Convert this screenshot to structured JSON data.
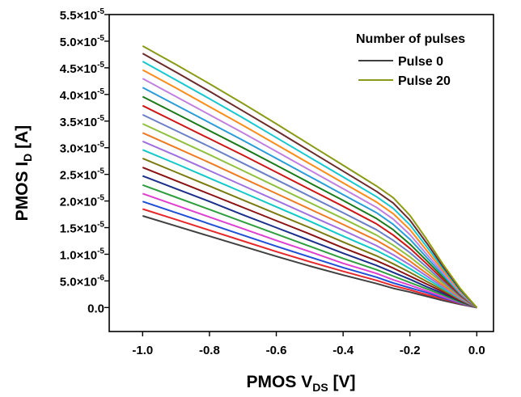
{
  "chart_data": {
    "type": "line",
    "xlabel": {
      "main": "PMOS V",
      "sub": "DS",
      "unit": " [V]"
    },
    "ylabel": {
      "main": "PMOS I",
      "sub": "D",
      "unit": " [A]"
    },
    "xlim": [
      -1.1,
      0.05
    ],
    "ylim": [
      -4.5e-06,
      5.5e-05
    ],
    "x_ticks": [
      {
        "value": -1.0,
        "label": "-1.0"
      },
      {
        "value": -0.8,
        "label": "-0.8"
      },
      {
        "value": -0.6,
        "label": "-0.6"
      },
      {
        "value": -0.4,
        "label": "-0.4"
      },
      {
        "value": -0.2,
        "label": "-0.2"
      },
      {
        "value": 0.0,
        "label": "0.0"
      }
    ],
    "y_ticks": [
      {
        "value": 0.0,
        "label": "0.0",
        "mant": "",
        "exp": ""
      },
      {
        "value": 5e-06,
        "label": "",
        "mant": "5.0×10",
        "exp": "-6"
      },
      {
        "value": 1e-05,
        "label": "",
        "mant": "1.0×10",
        "exp": "-5"
      },
      {
        "value": 1.5e-05,
        "label": "",
        "mant": "1.5×10",
        "exp": "-5"
      },
      {
        "value": 2e-05,
        "label": "",
        "mant": "2.0×10",
        "exp": "-5"
      },
      {
        "value": 2.5e-05,
        "label": "",
        "mant": "2.5×10",
        "exp": "-5"
      },
      {
        "value": 3e-05,
        "label": "",
        "mant": "3.0×10",
        "exp": "-5"
      },
      {
        "value": 3.5e-05,
        "label": "",
        "mant": "3.5×10",
        "exp": "-5"
      },
      {
        "value": 4e-05,
        "label": "",
        "mant": "4.0×10",
        "exp": "-5"
      },
      {
        "value": 4.5e-05,
        "label": "",
        "mant": "4.5×10",
        "exp": "-5"
      },
      {
        "value": 5e-05,
        "label": "",
        "mant": "5.0×10",
        "exp": "-5"
      },
      {
        "value": 5.5e-05,
        "label": "",
        "mant": "5.5×10",
        "exp": "-5"
      }
    ],
    "x": [
      -1.0,
      -0.9,
      -0.8,
      -0.7,
      -0.6,
      -0.5,
      -0.4,
      -0.3,
      -0.25,
      -0.2,
      -0.15,
      -0.1,
      -0.05,
      0.0
    ],
    "series": [
      {
        "color": "#404040",
        "values": [
          1.72e-05,
          1.53e-05,
          1.34e-05,
          1.15e-05,
          9.6e-06,
          7.8e-06,
          6.1e-06,
          4.5e-06,
          3.6e-06,
          2.9e-06,
          2.1e-06,
          1.3e-06,
          6e-07,
          0.0
        ]
      },
      {
        "color": "#e8272a",
        "values": [
          1.85e-05,
          1.65e-05,
          1.45e-05,
          1.25e-05,
          1.05e-05,
          8.6e-06,
          6.8e-06,
          5.1e-06,
          4.1e-06,
          3.3e-06,
          2.4e-06,
          1.6e-06,
          7e-07,
          0.0
        ]
      },
      {
        "color": "#1f4fd6",
        "values": [
          1.99e-05,
          1.78e-05,
          1.57e-05,
          1.36e-05,
          1.15e-05,
          9.5e-06,
          7.5e-06,
          5.7e-06,
          4.6e-06,
          3.7e-06,
          2.8e-06,
          1.8e-06,
          8e-07,
          0.0
        ]
      },
      {
        "color": "#e040d0",
        "values": [
          2.14e-05,
          1.92e-05,
          1.7e-05,
          1.48e-05,
          1.26e-05,
          1.05e-05,
          8.3e-06,
          6.4e-06,
          5.2e-06,
          4.2e-06,
          3.1e-06,
          2e-06,
          9e-07,
          0.0
        ]
      },
      {
        "color": "#2e9e3e",
        "values": [
          2.3e-05,
          2.07e-05,
          1.84e-05,
          1.61e-05,
          1.38e-05,
          1.15e-05,
          9.2e-06,
          7.1e-06,
          5.9e-06,
          4.7e-06,
          3.5e-06,
          2.3e-06,
          1e-06,
          0.0
        ]
      },
      {
        "color": "#1a2f8a",
        "values": [
          2.47e-05,
          2.23e-05,
          1.99e-05,
          1.74e-05,
          1.5e-05,
          1.26e-05,
          1.02e-05,
          7.9e-06,
          6.6e-06,
          5.3e-06,
          3.9e-06,
          2.6e-06,
          1.2e-06,
          0.0
        ]
      },
      {
        "color": "#8a1212",
        "values": [
          2.63e-05,
          2.38e-05,
          2.13e-05,
          1.88e-05,
          1.63e-05,
          1.38e-05,
          1.12e-05,
          8.8e-06,
          7.4e-06,
          5.9e-06,
          4.4e-06,
          2.9e-06,
          1.3e-06,
          0.0
        ]
      },
      {
        "color": "#7a7a10",
        "values": [
          2.8e-05,
          2.54e-05,
          2.28e-05,
          2.02e-05,
          1.76e-05,
          1.5e-05,
          1.23e-05,
          9.7e-06,
          8.2e-06,
          6.6e-06,
          4.9e-06,
          3.2e-06,
          1.5e-06,
          0.0
        ]
      },
      {
        "color": "#12c8c8",
        "values": [
          2.96e-05,
          2.7e-05,
          2.43e-05,
          2.16e-05,
          1.89e-05,
          1.62e-05,
          1.34e-05,
          1.07e-05,
          9.1e-06,
          7.3e-06,
          5.4e-06,
          3.5e-06,
          1.6e-06,
          0.0
        ]
      },
      {
        "color": "#a070e0",
        "values": [
          3.12e-05,
          2.85e-05,
          2.57e-05,
          2.29e-05,
          2.01e-05,
          1.73e-05,
          1.45e-05,
          1.16e-05,
          9.9e-06,
          8e-06,
          5.9e-06,
          3.8e-06,
          1.7e-06,
          0.0
        ]
      },
      {
        "color": "#f07a22",
        "values": [
          3.28e-05,
          3e-05,
          2.72e-05,
          2.43e-05,
          2.14e-05,
          1.85e-05,
          1.56e-05,
          1.26e-05,
          1.08e-05,
          8.7e-06,
          6.4e-06,
          4.1e-06,
          1.9e-06,
          0.0
        ]
      },
      {
        "color": "#8fc040",
        "values": [
          3.45e-05,
          3.16e-05,
          2.87e-05,
          2.57e-05,
          2.27e-05,
          1.97e-05,
          1.67e-05,
          1.36e-05,
          1.17e-05,
          9.5e-06,
          7e-06,
          4.5e-06,
          2e-06,
          0.0
        ]
      },
      {
        "color": "#6a7fc8",
        "values": [
          3.62e-05,
          3.32e-05,
          3.02e-05,
          2.71e-05,
          2.4e-05,
          2.09e-05,
          1.78e-05,
          1.46e-05,
          1.26e-05,
          1.03e-05,
          7.6e-06,
          4.8e-06,
          2.1e-06,
          0.0
        ]
      },
      {
        "color": "#d01515",
        "values": [
          3.79e-05,
          3.48e-05,
          3.17e-05,
          2.86e-05,
          2.54e-05,
          2.22e-05,
          1.9e-05,
          1.57e-05,
          1.36e-05,
          1.11e-05,
          8.2e-06,
          5.2e-06,
          2.3e-06,
          0.0
        ]
      },
      {
        "color": "#1a7a1a",
        "values": [
          3.96e-05,
          3.64e-05,
          3.32e-05,
          3e-05,
          2.67e-05,
          2.34e-05,
          2.01e-05,
          1.67e-05,
          1.46e-05,
          1.19e-05,
          8.8e-06,
          5.6e-06,
          2.5e-06,
          0.0
        ]
      },
      {
        "color": "#2a9cd8",
        "values": [
          4.13e-05,
          3.8e-05,
          3.47e-05,
          3.14e-05,
          2.8e-05,
          2.46e-05,
          2.12e-05,
          1.78e-05,
          1.56e-05,
          1.28e-05,
          9.4e-06,
          6e-06,
          2.6e-06,
          0.0
        ]
      },
      {
        "color": "#c080e0",
        "values": [
          4.3e-05,
          3.96e-05,
          3.62e-05,
          3.28e-05,
          2.93e-05,
          2.58e-05,
          2.23e-05,
          1.88e-05,
          1.66e-05,
          1.37e-05,
          1e-05,
          6.4e-06,
          2.8e-06,
          0.0
        ]
      },
      {
        "color": "#ff8c1a",
        "values": [
          4.46e-05,
          4.12e-05,
          3.77e-05,
          3.42e-05,
          3.06e-05,
          2.7e-05,
          2.34e-05,
          1.98e-05,
          1.76e-05,
          1.46e-05,
          1.07e-05,
          6.8e-06,
          3e-06,
          0.0
        ]
      },
      {
        "color": "#18c8d0",
        "values": [
          4.62e-05,
          4.27e-05,
          3.92e-05,
          3.56e-05,
          3.19e-05,
          2.82e-05,
          2.45e-05,
          2.08e-05,
          1.86e-05,
          1.55e-05,
          1.14e-05,
          7.2e-06,
          3.2e-06,
          0.0
        ]
      },
      {
        "color": "#6b2b2b",
        "values": [
          4.77e-05,
          4.42e-05,
          4.06e-05,
          3.69e-05,
          3.32e-05,
          2.94e-05,
          2.56e-05,
          2.18e-05,
          1.96e-05,
          1.64e-05,
          1.21e-05,
          7.6e-06,
          3.4e-06,
          0.0
        ]
      },
      {
        "color": "#8a9a18",
        "values": [
          4.91e-05,
          4.56e-05,
          4.2e-05,
          3.83e-05,
          3.45e-05,
          3.06e-05,
          2.67e-05,
          2.28e-05,
          2.06e-05,
          1.73e-05,
          1.28e-05,
          8e-06,
          3.6e-06,
          0.0
        ]
      }
    ],
    "grid": false,
    "legend_position": "top-right",
    "legend": {
      "title": "Number of pulses",
      "entries": [
        {
          "label": "Pulse 0",
          "color": "#404040"
        },
        {
          "label": "Pulse 20",
          "color": "#8a9a18"
        }
      ]
    }
  }
}
